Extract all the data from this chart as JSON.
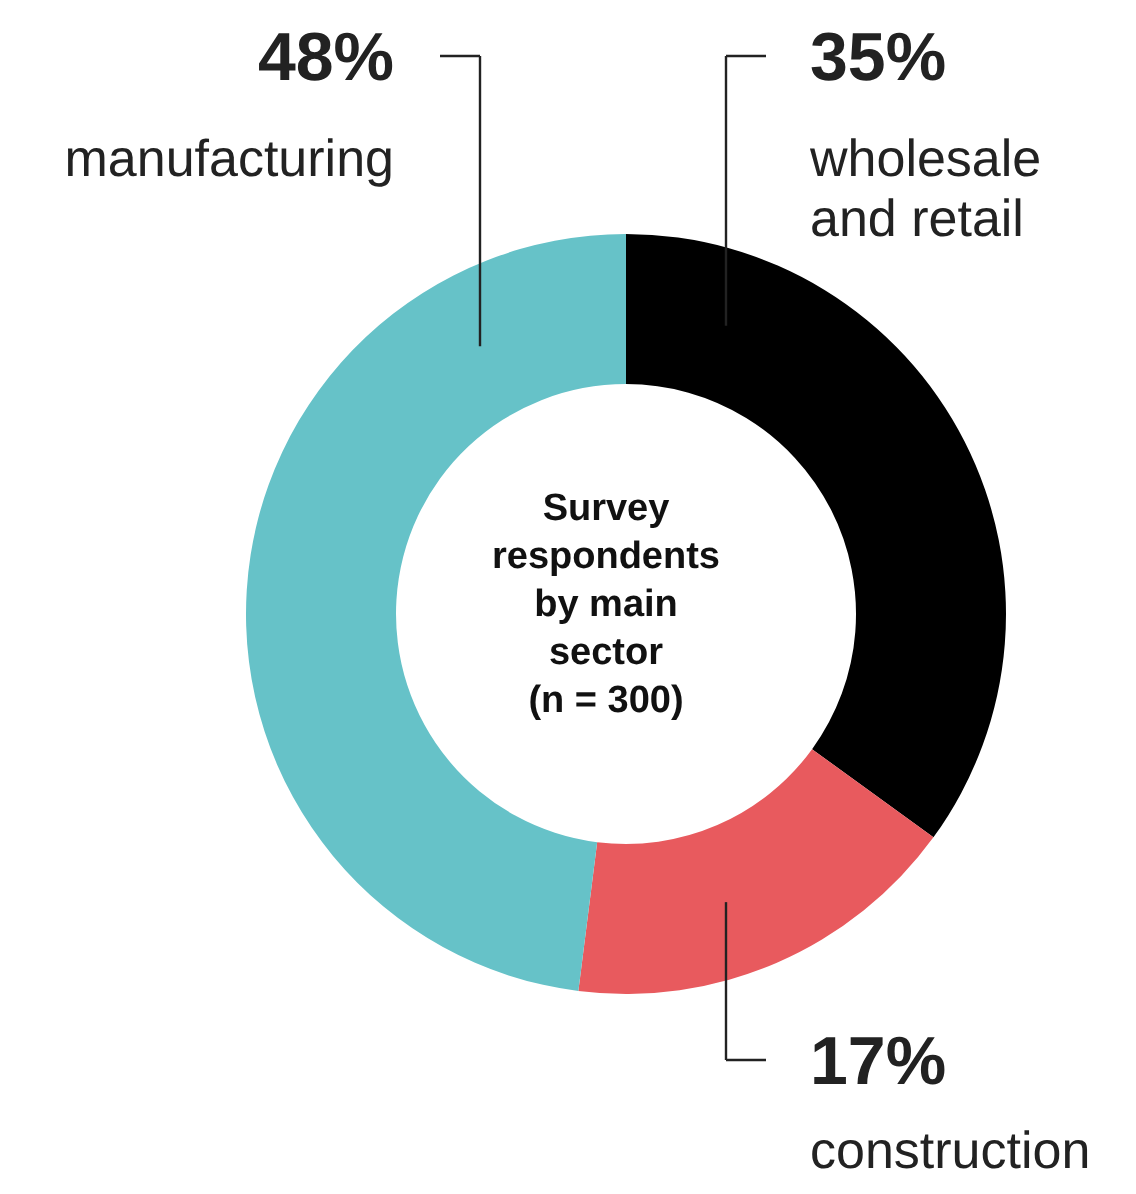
{
  "chart_data": {
    "type": "donut",
    "title": "Survey respondents by main sector (n = 300)",
    "categories": [
      "wholesale and retail",
      "construction",
      "manufacturing"
    ],
    "values": [
      35,
      17,
      48
    ],
    "colors": [
      "#000000",
      "#e85a5e",
      "#66c2c8"
    ],
    "value_labels": [
      "35%",
      "17%",
      "48%"
    ]
  }
}
